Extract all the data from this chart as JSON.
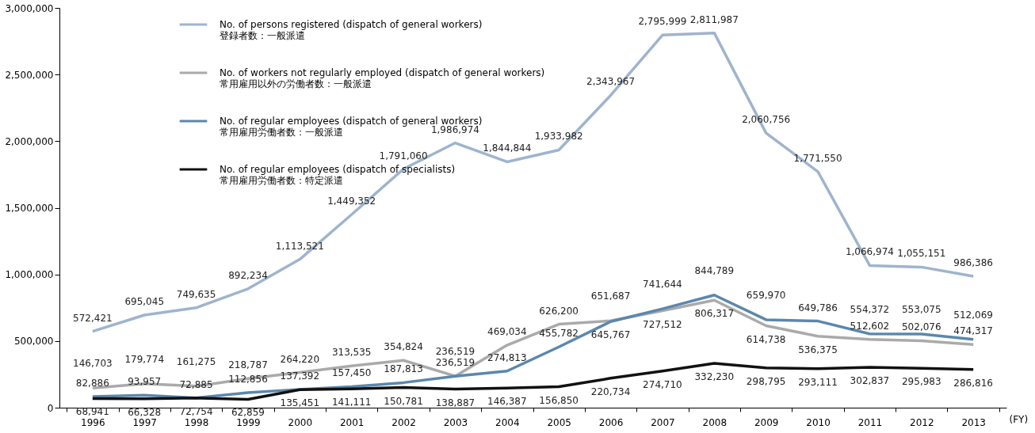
{
  "chart_data": {
    "type": "line",
    "xlabel": "(FY)",
    "categories": [
      "1996",
      "1997",
      "1998",
      "1999",
      "2000",
      "2001",
      "2002",
      "2003",
      "2004",
      "2005",
      "2006",
      "2007",
      "2008",
      "2009",
      "2010",
      "2011",
      "2012",
      "2013"
    ],
    "ylim": [
      0,
      3000000
    ],
    "yticks": [
      {
        "value": 0,
        "label": "0"
      },
      {
        "value": 500000,
        "label": "500,000"
      },
      {
        "value": 1000000,
        "label": "1,000,000"
      },
      {
        "value": 1500000,
        "label": "1,500,000"
      },
      {
        "value": 2000000,
        "label": "2,000,000"
      },
      {
        "value": 2500000,
        "label": "2,500,000"
      },
      {
        "value": 3000000,
        "label": "3,000,000"
      }
    ],
    "grid": false,
    "legend": "top left",
    "marker": "none",
    "line_style": "solid",
    "series": [
      {
        "name": "No. of persons registered (dispatch of general workers)\n登録者数：一般派遣",
        "color": "#9fb4cd",
        "values": [
          572421,
          695045,
          749635,
          892234,
          1113521,
          1449352,
          1791060,
          1986974,
          1844844,
          1933982,
          2343967,
          2795999,
          2811987,
          2060756,
          1771550,
          1066974,
          1055151,
          986386
        ],
        "value_labels": [
          "572,421",
          "695,045",
          "749,635",
          "892,234",
          "1,113,521",
          "1,449,352",
          "1,791,060",
          "1,986,974",
          "1,844,844",
          "1,933,982",
          "2,343,967",
          "2,795,999",
          "2,811,987",
          "2,060,756",
          "1,771,550",
          "1,066,974",
          "1,055,151",
          "986,386"
        ]
      },
      {
        "name": "No. of workers not regularly employed (dispatch of general workers)\n常用雇用以外の労働者数：一般派遣",
        "color": "#aaaaaa",
        "values": [
          146703,
          179774,
          161275,
          218787,
          264220,
          313535,
          354824,
          236519,
          469034,
          626200,
          651687,
          727512,
          806317,
          614738,
          536375,
          512602,
          502076,
          474317
        ],
        "value_labels": [
          "146,703",
          "179,774",
          "161,275",
          "218,787",
          "264,220",
          "313,535",
          "354,824",
          "236,519",
          "469,034",
          "626,200",
          "651,687",
          "727,512",
          "806,317",
          "614,738",
          "536,375",
          "512,602",
          "502,076",
          "474,317"
        ]
      },
      {
        "name": "No. of regular employees (dispatch of general workers)\n常用雇用労働者数：一般派遣",
        "color": "#5b87ad",
        "values": [
          82886,
          93957,
          72885,
          112856,
          137392,
          157450,
          187813,
          236519,
          274813,
          455782,
          645767,
          741644,
          844789,
          659970,
          649786,
          554372,
          553075,
          512069
        ],
        "value_labels": [
          "82,886",
          "93,957",
          "72,885",
          "112,856",
          "137,392",
          "157,450",
          "187,813",
          "236,519",
          "274,813",
          "455,782",
          "645,767",
          "741,644",
          "844,789",
          "659,970",
          "649,786",
          "554,372",
          "553,075",
          "512,069"
        ]
      },
      {
        "name": "No. of regular employees (dispatch of specialists)\n常用雇用労働者数：特定派遣",
        "color": "#111111",
        "values": [
          68941,
          66328,
          72754,
          62859,
          135451,
          141111,
          150781,
          138887,
          146387,
          156850,
          220734,
          274710,
          332230,
          298795,
          293111,
          302837,
          295983,
          286816
        ],
        "value_labels": [
          "68,941",
          "66,328",
          "72,754",
          "62,859",
          "135,451",
          "141,111",
          "150,781",
          "138,887",
          "146,387",
          "156,850",
          "220,734",
          "274,710",
          "332,230",
          "298,795",
          "293,111",
          "302,837",
          "295,983",
          "286,816"
        ]
      }
    ]
  }
}
